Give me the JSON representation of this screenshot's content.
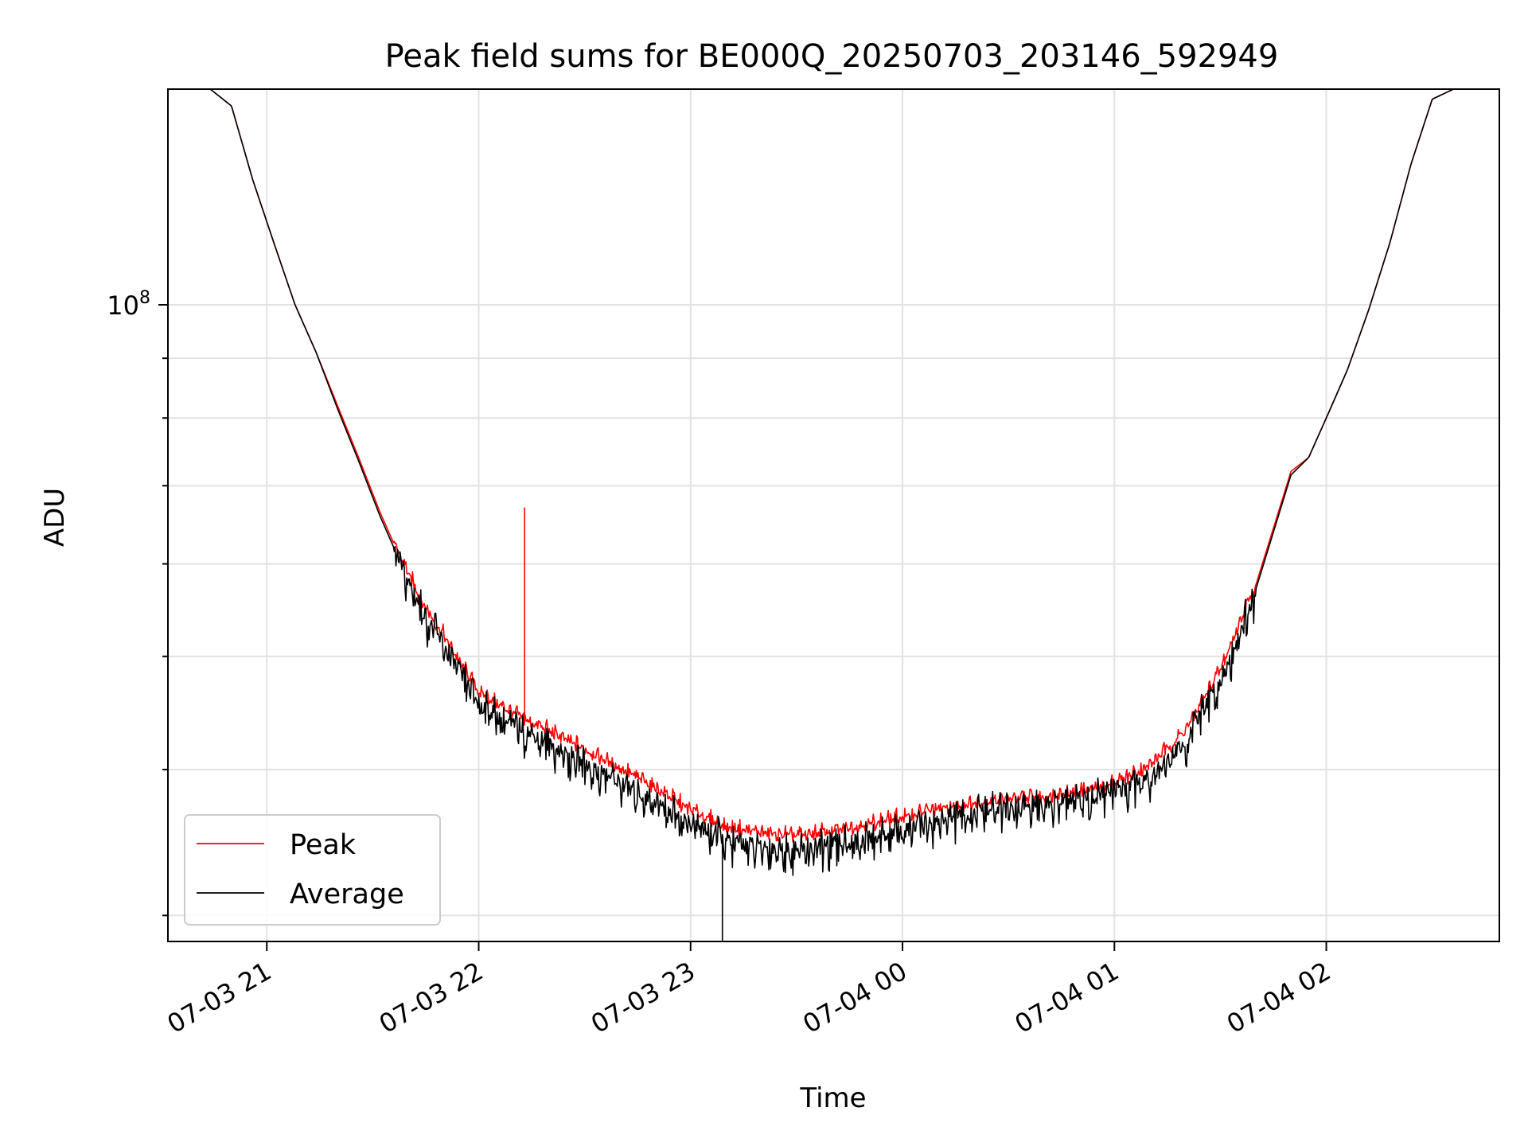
{
  "chart_data": {
    "type": "line",
    "title": "Peak field sums for BE000Q_20250703_203146_592949",
    "xlabel": "Time",
    "ylabel": "ADU",
    "yscale": "log",
    "ylim": [
      28500000,
      153000000
    ],
    "xlim": [
      "2025-07-03 20:32",
      "2025-07-04 02:49"
    ],
    "grid": true,
    "legend_position": "lower-left",
    "x_tick_labels": [
      "07-03 21",
      "07-03 22",
      "07-03 23",
      "07-04 00",
      "07-04 01",
      "07-04 02"
    ],
    "y_tick_labels": [
      {
        "base": "10",
        "exponent": "8"
      }
    ],
    "series": [
      {
        "name": "Peak",
        "color": "#ff0000",
        "x": [
          "2025-07-03 20:44",
          "2025-07-03 20:50",
          "2025-07-03 20:56",
          "2025-07-03 21:02",
          "2025-07-03 21:08",
          "2025-07-03 21:14",
          "2025-07-03 21:20",
          "2025-07-03 21:26",
          "2025-07-03 21:32",
          "2025-07-03 21:38",
          "2025-07-03 21:44",
          "2025-07-03 21:50",
          "2025-07-03 21:56",
          "2025-07-03 22:00",
          "2025-07-03 22:06",
          "2025-07-03 22:12",
          "2025-07-03 22:13",
          "2025-07-03 22:14",
          "2025-07-03 22:20",
          "2025-07-03 22:30",
          "2025-07-03 22:40",
          "2025-07-03 22:50",
          "2025-07-03 23:00",
          "2025-07-03 23:10",
          "2025-07-03 23:20",
          "2025-07-03 23:30",
          "2025-07-03 23:40",
          "2025-07-03 23:50",
          "2025-07-04 00:00",
          "2025-07-04 00:10",
          "2025-07-04 00:20",
          "2025-07-04 00:30",
          "2025-07-04 00:40",
          "2025-07-04 00:50",
          "2025-07-04 01:00",
          "2025-07-04 01:10",
          "2025-07-04 01:20",
          "2025-07-04 01:30",
          "2025-07-04 01:40",
          "2025-07-04 01:50",
          "2025-07-04 01:55",
          "2025-07-04 02:00",
          "2025-07-04 02:06",
          "2025-07-04 02:12",
          "2025-07-04 02:18",
          "2025-07-04 02:24",
          "2025-07-04 02:30",
          "2025-07-04 02:36"
        ],
        "y": [
          153000000,
          148000000,
          128000000,
          113000000,
          100000000,
          91000000,
          82000000,
          74000000,
          66500000,
          60500000,
          55500000,
          52000000,
          48500000,
          46500000,
          45200000,
          44500000,
          67000000,
          44000000,
          43000000,
          41500000,
          40000000,
          38500000,
          36800000,
          35600000,
          35200000,
          35000000,
          35300000,
          35800000,
          36300000,
          36900000,
          37300000,
          37600000,
          37800000,
          38200000,
          38800000,
          40200000,
          43000000,
          48500000,
          57500000,
          72000000,
          74000000,
          80000000,
          88000000,
          99000000,
          113000000,
          132000000,
          150000000,
          153000000
        ]
      },
      {
        "name": "Average",
        "color": "#000000",
        "x": [
          "2025-07-03 20:44",
          "2025-07-03 20:50",
          "2025-07-03 20:56",
          "2025-07-03 21:02",
          "2025-07-03 21:08",
          "2025-07-03 21:14",
          "2025-07-03 21:20",
          "2025-07-03 21:26",
          "2025-07-03 21:32",
          "2025-07-03 21:38",
          "2025-07-03 21:44",
          "2025-07-03 21:50",
          "2025-07-03 21:56",
          "2025-07-03 22:00",
          "2025-07-03 22:06",
          "2025-07-03 22:12",
          "2025-07-03 22:20",
          "2025-07-03 22:30",
          "2025-07-03 22:40",
          "2025-07-03 22:50",
          "2025-07-03 23:00",
          "2025-07-03 23:08",
          "2025-07-03 23:09",
          "2025-07-03 23:10",
          "2025-07-03 23:20",
          "2025-07-03 23:30",
          "2025-07-03 23:40",
          "2025-07-03 23:50",
          "2025-07-04 00:00",
          "2025-07-04 00:10",
          "2025-07-04 00:20",
          "2025-07-04 00:30",
          "2025-07-04 00:40",
          "2025-07-04 00:50",
          "2025-07-04 01:00",
          "2025-07-04 01:10",
          "2025-07-04 01:20",
          "2025-07-04 01:30",
          "2025-07-04 01:40",
          "2025-07-04 01:50",
          "2025-07-04 01:55",
          "2025-07-04 02:00",
          "2025-07-04 02:06",
          "2025-07-04 02:12",
          "2025-07-04 02:18",
          "2025-07-04 02:24",
          "2025-07-04 02:30",
          "2025-07-04 02:36"
        ],
        "y": [
          153000000,
          148000000,
          128000000,
          113000000,
          100000000,
          91000000,
          81500000,
          73500000,
          66000000,
          60000000,
          55000000,
          51300000,
          47800000,
          45800000,
          44300000,
          43600000,
          42200000,
          40600000,
          39200000,
          37700000,
          36100000,
          35200000,
          28500000,
          34900000,
          34500000,
          34300000,
          34600000,
          35000000,
          35600000,
          36300000,
          36800000,
          37200000,
          37500000,
          37900000,
          38500000,
          39700000,
          42300000,
          47800000,
          57000000,
          71500000,
          74000000,
          80000000,
          88000000,
          99000000,
          113000000,
          132000000,
          150000000,
          153000000
        ]
      }
    ]
  }
}
